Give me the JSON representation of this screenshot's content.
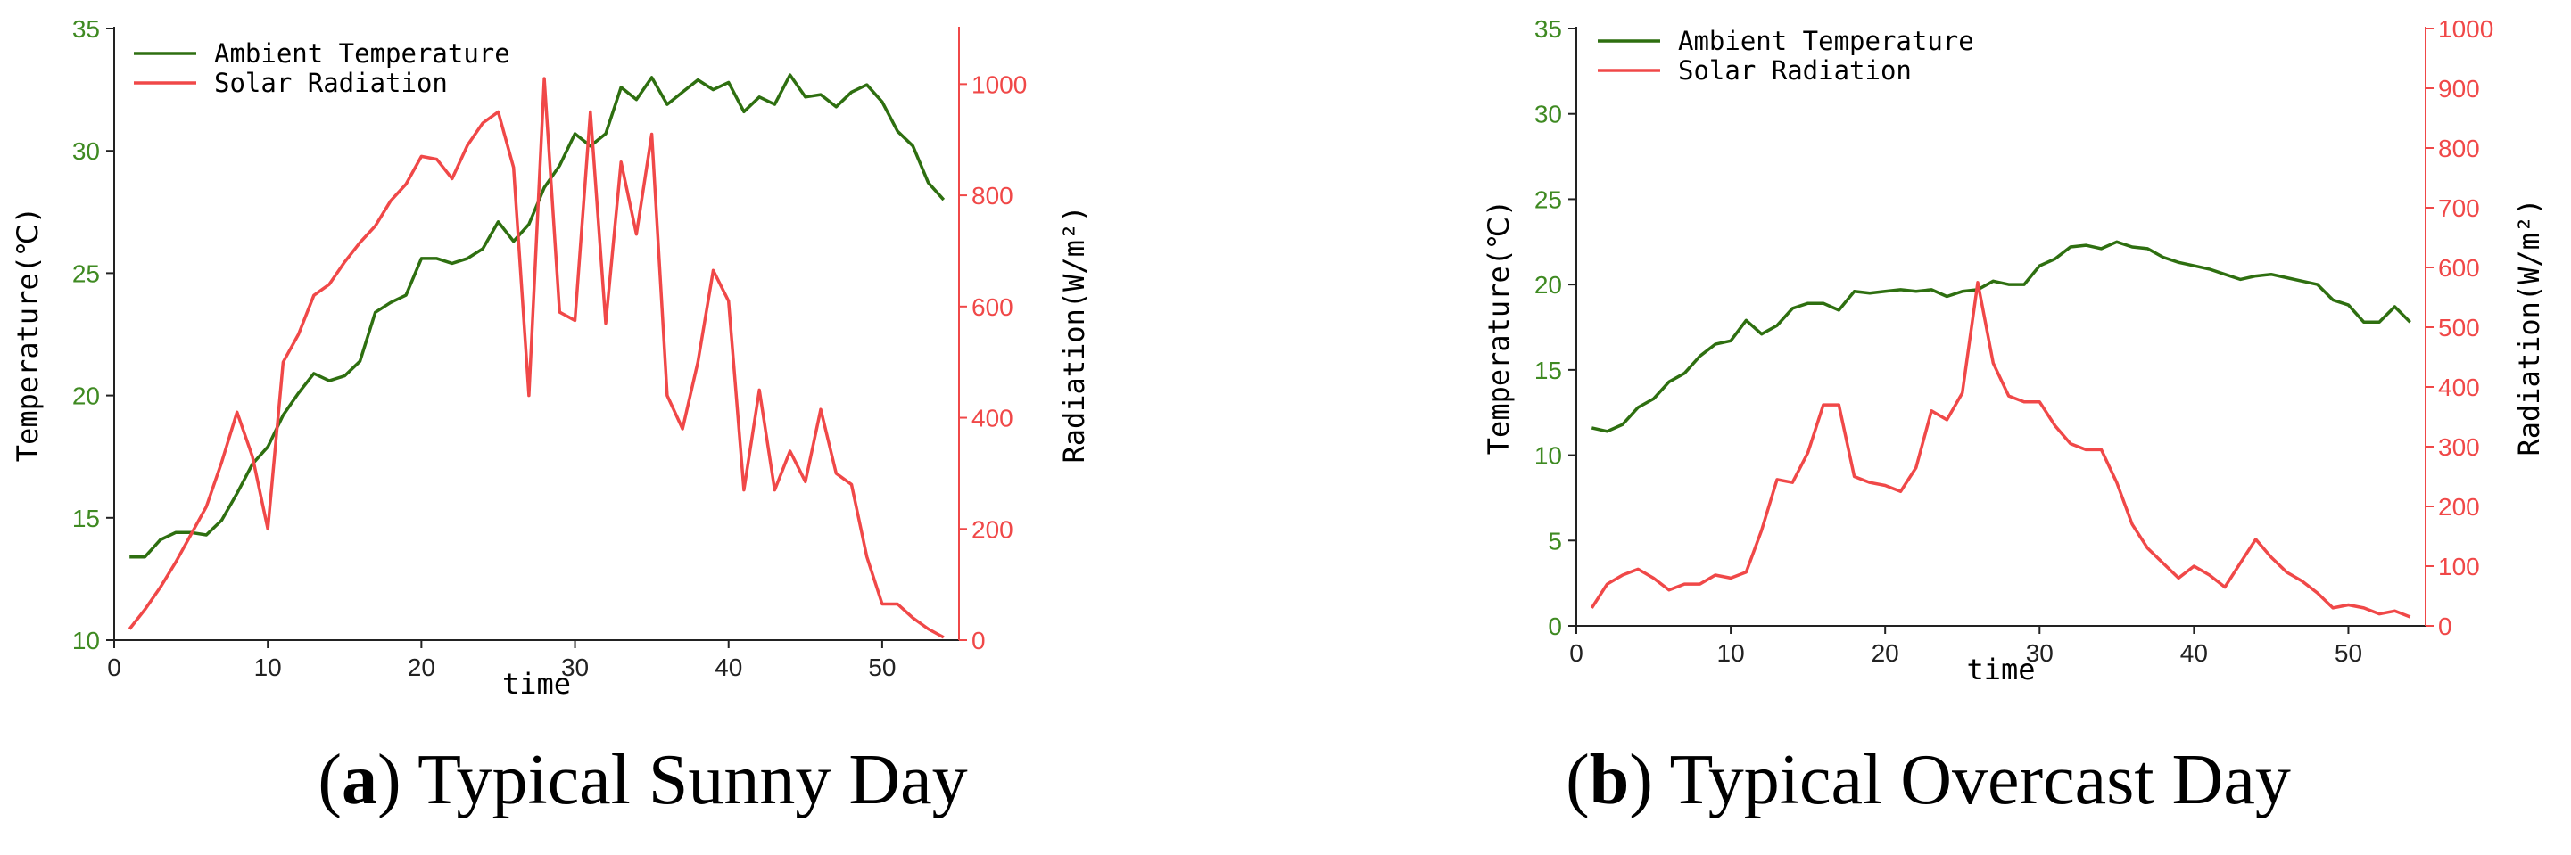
{
  "colors": {
    "temperature": "#2e6f10",
    "radiation": "#f04848",
    "axis_left_text": "#3f8a22",
    "axis_right_text": "#f04848"
  },
  "chart_data": [
    {
      "type": "line",
      "xlabel": "time",
      "ylabel": "Temperature(℃)",
      "y2label": "Radiation(W/m²)",
      "xlim": [
        0,
        55
      ],
      "xticks": [
        0,
        10,
        20,
        30,
        40,
        50
      ],
      "ylim": [
        10,
        35
      ],
      "yticks": [
        10,
        15,
        20,
        25,
        30,
        35
      ],
      "y2lim": [
        0,
        1100
      ],
      "y2ticks": [
        0,
        200,
        400,
        600,
        800,
        1000
      ],
      "legend_position": "top-left",
      "x": [
        1,
        2,
        3,
        4,
        5,
        6,
        7,
        8,
        9,
        10,
        11,
        12,
        13,
        14,
        15,
        16,
        17,
        18,
        19,
        20,
        21,
        22,
        23,
        24,
        25,
        26,
        27,
        28,
        29,
        30,
        31,
        32,
        33,
        34,
        35,
        36,
        37,
        38,
        39,
        40,
        41,
        42,
        43,
        44,
        45,
        46,
        47,
        48,
        49,
        50,
        51,
        52,
        53,
        54
      ],
      "series": [
        {
          "name": "Ambient Temperature",
          "axis": "left",
          "color": "#2e6f10",
          "values": [
            13.4,
            13.4,
            14.1,
            14.4,
            14.4,
            14.3,
            14.9,
            16.0,
            17.2,
            17.9,
            19.2,
            20.1,
            20.9,
            20.6,
            20.8,
            21.4,
            23.4,
            23.8,
            24.1,
            25.6,
            25.6,
            25.4,
            25.6,
            26.0,
            27.1,
            26.3,
            27.0,
            28.5,
            29.4,
            30.7,
            30.2,
            30.7,
            32.6,
            32.1,
            33.0,
            31.9,
            32.4,
            32.9,
            32.5,
            32.8,
            31.6,
            32.2,
            31.9,
            33.1,
            32.2,
            32.3,
            31.8,
            32.4,
            32.7,
            32.0,
            30.8,
            30.2,
            28.7,
            28.0
          ]
        },
        {
          "name": "Solar Radiation",
          "axis": "right",
          "color": "#f04848",
          "values": [
            20,
            55,
            95,
            140,
            190,
            240,
            320,
            410,
            330,
            200,
            500,
            550,
            620,
            640,
            680,
            715,
            745,
            790,
            820,
            870,
            865,
            830,
            890,
            930,
            950,
            850,
            440,
            1010,
            590,
            575,
            950,
            570,
            860,
            730,
            910,
            440,
            380,
            500,
            665,
            610,
            270,
            450,
            270,
            340,
            285,
            415,
            300,
            280,
            150,
            65,
            65,
            40,
            20,
            5
          ]
        }
      ],
      "caption_label": "a",
      "caption_text": "Typical Sunny Day"
    },
    {
      "type": "line",
      "xlabel": "time",
      "ylabel": "Temperature(℃)",
      "y2label": "Radiation(W/m²)",
      "xlim": [
        0,
        55
      ],
      "xticks": [
        0,
        10,
        20,
        30,
        40,
        50
      ],
      "ylim": [
        0,
        35
      ],
      "yticks": [
        0,
        5,
        10,
        15,
        20,
        25,
        30,
        35
      ],
      "y2lim": [
        0,
        1000
      ],
      "y2ticks": [
        0,
        100,
        200,
        300,
        400,
        500,
        600,
        700,
        800,
        900,
        1000
      ],
      "legend_position": "top-left",
      "x": [
        1,
        2,
        3,
        4,
        5,
        6,
        7,
        8,
        9,
        10,
        11,
        12,
        13,
        14,
        15,
        16,
        17,
        18,
        19,
        20,
        21,
        22,
        23,
        24,
        25,
        26,
        27,
        28,
        29,
        30,
        31,
        32,
        33,
        34,
        35,
        36,
        37,
        38,
        39,
        40,
        41,
        42,
        43,
        44,
        45,
        46,
        47,
        48,
        49,
        50,
        51,
        52,
        53,
        54
      ],
      "series": [
        {
          "name": "Ambient Temperature",
          "axis": "left",
          "color": "#2e6f10",
          "values": [
            11.6,
            11.4,
            11.8,
            12.8,
            13.3,
            14.3,
            14.8,
            15.8,
            16.5,
            16.7,
            17.9,
            17.1,
            17.6,
            18.6,
            18.9,
            18.9,
            18.5,
            19.6,
            19.5,
            19.6,
            19.7,
            19.6,
            19.7,
            19.3,
            19.6,
            19.7,
            20.2,
            20.0,
            20.0,
            21.1,
            21.5,
            22.2,
            22.3,
            22.1,
            22.5,
            22.2,
            22.1,
            21.6,
            21.3,
            21.1,
            20.9,
            20.6,
            20.3,
            20.5,
            20.6,
            20.4,
            20.2,
            20.0,
            19.1,
            18.8,
            17.8,
            17.8,
            18.7,
            17.8
          ]
        },
        {
          "name": "Solar Radiation",
          "axis": "right",
          "color": "#f04848",
          "values": [
            30,
            70,
            85,
            95,
            80,
            60,
            70,
            70,
            85,
            80,
            90,
            160,
            245,
            240,
            290,
            370,
            370,
            250,
            240,
            235,
            225,
            265,
            360,
            345,
            390,
            575,
            440,
            385,
            375,
            375,
            335,
            305,
            295,
            295,
            240,
            170,
            130,
            105,
            80,
            100,
            85,
            65,
            105,
            145,
            115,
            90,
            75,
            55,
            30,
            35,
            30,
            20,
            25,
            15
          ]
        }
      ],
      "caption_label": "b",
      "caption_text": "Typical Overcast Day"
    }
  ]
}
